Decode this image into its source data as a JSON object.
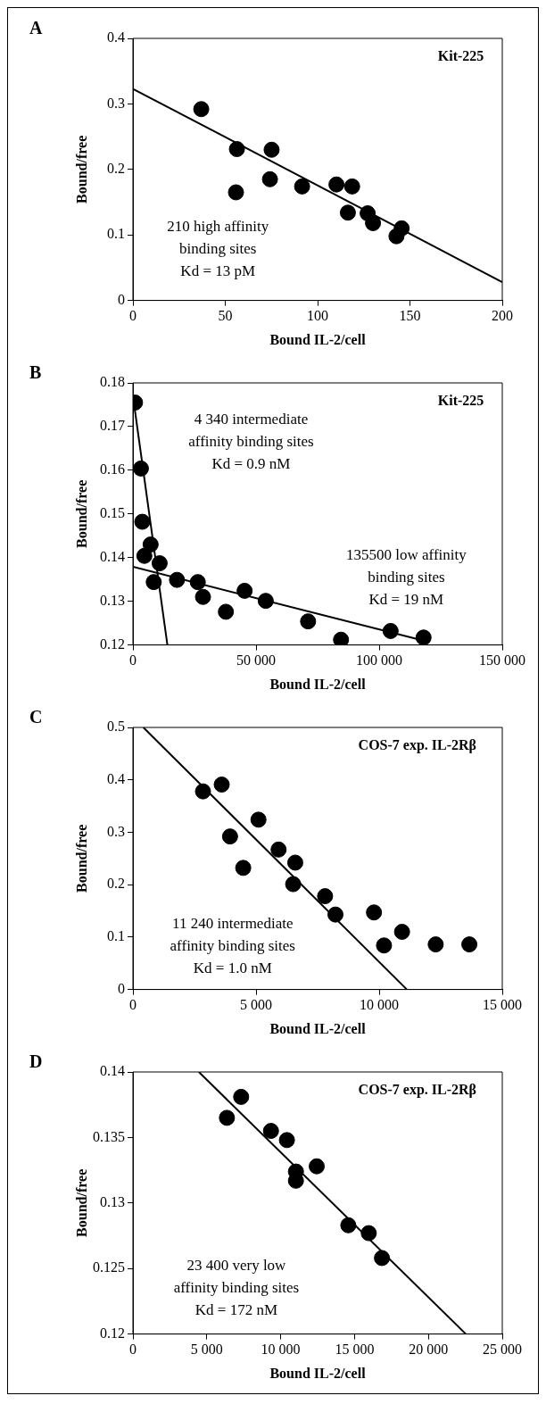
{
  "chart_data": [
    {
      "type": "scatter",
      "title": "A",
      "xlabel": "Bound IL-2/cell",
      "ylabel": "Bound/free",
      "xlim": [
        0,
        200
      ],
      "xticks": [
        0,
        50,
        100,
        150,
        200
      ],
      "ylim": [
        0,
        0.4
      ],
      "yticks": [
        0,
        0.1,
        0.2,
        0.3,
        0.4
      ],
      "annotations": [
        "Kit-225",
        "210 high affinity\nbinding sites\nKd = 13 pM"
      ],
      "series": [
        {
          "color": "#000000",
          "marker": "circle",
          "x": [
            37,
            56.3,
            55.8,
            75.1,
            74.2,
            91.6,
            110.2,
            118.7,
            116.4,
            127.1,
            130,
            145.5,
            142.7
          ],
          "values": [
            0.292,
            0.231,
            0.165,
            0.23,
            0.185,
            0.174,
            0.177,
            0.174,
            0.134,
            0.133,
            0.118,
            0.11,
            0.098
          ]
        },
        {
          "type": "line",
          "color": "#000000",
          "x": [
            0,
            200
          ],
          "values": [
            0.323,
            0.028
          ]
        }
      ]
    },
    {
      "type": "scatter",
      "title": "B",
      "xlabel": "Bound IL-2/cell",
      "ylabel": "Bound/free",
      "xlim": [
        0,
        150000
      ],
      "xticks": [
        0,
        {
          "value": 50000,
          "label": "50 000"
        },
        {
          "value": 100000,
          "label": "100 000"
        },
        {
          "value": 150000,
          "label": "150 000"
        }
      ],
      "ylim": [
        0.12,
        0.18
      ],
      "yticks": [
        0.12,
        0.13,
        0.14,
        0.15,
        0.16,
        0.17,
        0.18
      ],
      "annotations": [
        "Kit-225",
        "4 340 intermediate\naffinity binding sites\nKd = 0.9 nM",
        "135500 low affinity\nbinding sites\nKd = 19 nM"
      ],
      "series": [
        {
          "color": "#000000",
          "marker": "circle",
          "x": [
            845,
            3240,
            3800,
            7180,
            4650,
            10850,
            8450,
            17890,
            26340,
            28450,
            37750,
            45350,
            53940,
            71130,
            84500,
            104650,
            118030
          ],
          "values": [
            0.1755,
            0.1604,
            0.1482,
            0.143,
            0.1404,
            0.1387,
            0.1344,
            0.1349,
            0.1344,
            0.131,
            0.1276,
            0.1324,
            0.1301,
            0.1254,
            0.1212,
            0.1232,
            0.1217
          ]
        },
        {
          "type": "line",
          "color": "#000000",
          "x": [
            0,
            14000
          ],
          "values": [
            0.177,
            0.12
          ]
        },
        {
          "type": "line",
          "color": "#000000",
          "x": [
            0,
            118000
          ],
          "values": [
            0.1379,
            0.121
          ]
        }
      ]
    },
    {
      "type": "scatter",
      "title": "C",
      "xlabel": "Bound IL-2/cell",
      "ylabel": "Bound/free",
      "xlim": [
        0,
        15000
      ],
      "xticks": [
        0,
        {
          "value": 5000,
          "label": "5 000"
        },
        {
          "value": 10000,
          "label": "10 000"
        },
        {
          "value": 15000,
          "label": "15 000"
        }
      ],
      "ylim": [
        0,
        0.5
      ],
      "yticks": [
        0,
        0.1,
        0.2,
        0.3,
        0.4,
        0.5
      ],
      "annotations": [
        "COS-7 exp. IL-2Rβ",
        "11 240 intermediate\naffinity binding sites\nKd = 1.0 nM"
      ],
      "series": [
        {
          "color": "#000000",
          "marker": "circle",
          "x": [
            2845,
            3606,
            3944,
            5099,
            4479,
            5915,
            6592,
            6507,
            7803,
            8225,
            9789,
            10197,
            10930,
            12296,
            13662
          ],
          "values": [
            0.378,
            0.391,
            0.292,
            0.324,
            0.232,
            0.267,
            0.242,
            0.201,
            0.178,
            0.143,
            0.147,
            0.084,
            0.11,
            0.086,
            0.086
          ]
        },
        {
          "type": "line",
          "color": "#000000",
          "x": [
            423,
            11127
          ],
          "values": [
            0.5,
            0
          ]
        }
      ]
    },
    {
      "type": "scatter",
      "title": "D",
      "xlabel": "Bound IL-2/cell",
      "ylabel": "Bound/free",
      "xlim": [
        0,
        25000
      ],
      "xticks": [
        0,
        {
          "value": 5000,
          "label": "5 000"
        },
        {
          "value": 10000,
          "label": "10 000"
        },
        {
          "value": 15000,
          "label": "15 000"
        },
        {
          "value": 20000,
          "label": "20 000"
        },
        {
          "value": 25000,
          "label": "25 000"
        }
      ],
      "ylim": [
        0.12,
        0.14
      ],
      "yticks": [
        0.12,
        0.125,
        0.13,
        0.135,
        0.14
      ],
      "annotations": [
        "COS-7 exp. IL-2Rβ",
        "23 400 very low\naffinity binding sites\nKd = 172 nM"
      ],
      "series": [
        {
          "color": "#000000",
          "marker": "circle",
          "x": [
            6362,
            7324,
            9343,
            10423,
            11033,
            11033,
            12441,
            14577,
            15962,
            16854
          ],
          "values": [
            0.1365,
            0.1381,
            0.1355,
            0.1348,
            0.1324,
            0.1317,
            0.1328,
            0.1283,
            0.1277,
            0.1258
          ]
        },
        {
          "type": "line",
          "color": "#000000",
          "x": [
            4460,
            22535
          ],
          "values": [
            0.14,
            0.12
          ]
        }
      ]
    }
  ]
}
